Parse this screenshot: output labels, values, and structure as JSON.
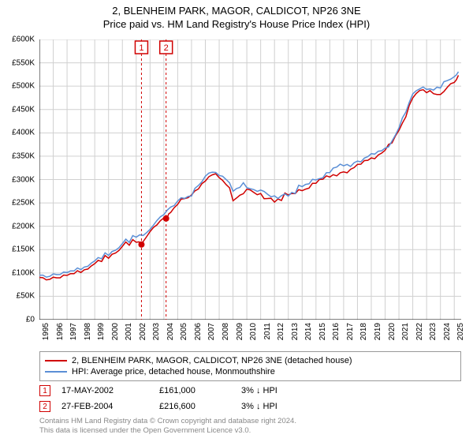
{
  "title_line1": "2, BLENHEIM PARK, MAGOR, CALDICOT, NP26 3NE",
  "title_line2": "Price paid vs. HM Land Registry's House Price Index (HPI)",
  "chart": {
    "type": "line",
    "background_color": "#ffffff",
    "grid_color": "#d0d0d0",
    "axis_color": "#000000",
    "tick_fontsize": 10,
    "xlim": [
      1995,
      2025.5
    ],
    "ylim": [
      0,
      600000
    ],
    "ytick_step": 50000,
    "y_ticks": [
      "£0",
      "£50K",
      "£100K",
      "£150K",
      "£200K",
      "£250K",
      "£300K",
      "£350K",
      "£400K",
      "£450K",
      "£500K",
      "£550K",
      "£600K"
    ],
    "x_ticks": [
      1995,
      1996,
      1997,
      1998,
      1999,
      2000,
      2001,
      2002,
      2003,
      2004,
      2005,
      2006,
      2007,
      2008,
      2009,
      2010,
      2011,
      2012,
      2013,
      2014,
      2015,
      2016,
      2017,
      2018,
      2019,
      2020,
      2021,
      2022,
      2023,
      2024,
      2025
    ],
    "series": [
      {
        "name": "price_paid",
        "label": "2, BLENHEIM PARK, MAGOR, CALDICOT, NP26 3NE (detached house)",
        "color": "#d00000",
        "line_width": 1.5,
        "x": [
          1995,
          1995.5,
          1996,
          1996.5,
          1997,
          1997.5,
          1998,
          1998.5,
          1999,
          1999.5,
          2000,
          2000.5,
          2001,
          2001.5,
          2002,
          2002.4,
          2002.5,
          2003,
          2003.5,
          2004,
          2004.2,
          2004.5,
          2005,
          2005.5,
          2006,
          2006.5,
          2007,
          2007.5,
          2008,
          2008.5,
          2009,
          2009.5,
          2010,
          2010.5,
          2011,
          2011.5,
          2012,
          2012.5,
          2013,
          2013.5,
          2014,
          2014.5,
          2015,
          2015.5,
          2016,
          2016.5,
          2017,
          2017.5,
          2018,
          2018.5,
          2019,
          2019.5,
          2020,
          2020.5,
          2021,
          2021.5,
          2022,
          2022.5,
          2023,
          2023.5,
          2024,
          2024.5,
          2025,
          2025.3
        ],
        "y": [
          87000,
          88000,
          88000,
          90000,
          94000,
          98000,
          102000,
          106000,
          112000,
          118000,
          128000,
          138000,
          148000,
          156000,
          161000,
          161000,
          170000,
          188000,
          204000,
          216600,
          216600,
          230000,
          248000,
          252000,
          258000,
          272000,
          290000,
          300000,
          295000,
          282000,
          258000,
          268000,
          278000,
          272000,
          268000,
          260000,
          255000,
          258000,
          260000,
          265000,
          270000,
          278000,
          285000,
          292000,
          300000,
          310000,
          315000,
          322000,
          330000,
          338000,
          345000,
          350000,
          358000,
          372000,
          398000,
          430000,
          468000,
          482000,
          478000,
          475000,
          480000,
          495000,
          510000,
          520000
        ]
      },
      {
        "name": "hpi",
        "label": "HPI: Average price, detached house, Monmouthshire",
        "color": "#5b8fd6",
        "line_width": 1.5,
        "x": [
          1995,
          1995.5,
          1996,
          1996.5,
          1997,
          1997.5,
          1998,
          1998.5,
          1999,
          1999.5,
          2000,
          2000.5,
          2001,
          2001.5,
          2002,
          2002.5,
          2003,
          2003.5,
          2004,
          2004.5,
          2005,
          2005.5,
          2006,
          2006.5,
          2007,
          2007.5,
          2008,
          2008.5,
          2009,
          2009.5,
          2010,
          2010.5,
          2011,
          2011.5,
          2012,
          2012.5,
          2013,
          2013.5,
          2014,
          2014.5,
          2015,
          2015.5,
          2016,
          2016.5,
          2017,
          2017.5,
          2018,
          2018.5,
          2019,
          2019.5,
          2020,
          2020.5,
          2021,
          2021.5,
          2022,
          2022.5,
          2023,
          2023.5,
          2024,
          2024.5,
          2025,
          2025.3
        ],
        "y": [
          92000,
          94000,
          95000,
          97000,
          100000,
          104000,
          108000,
          112000,
          118000,
          124000,
          134000,
          144000,
          154000,
          162000,
          172000,
          180000,
          196000,
          212000,
          226000,
          240000,
          256000,
          260000,
          266000,
          280000,
          298000,
          308000,
          302000,
          290000,
          266000,
          276000,
          286000,
          280000,
          276000,
          268000,
          263000,
          266000,
          268000,
          273000,
          278000,
          286000,
          293000,
          300000,
          308000,
          318000,
          324000,
          330000,
          338000,
          346000,
          353000,
          358000,
          366000,
          380000,
          406000,
          438000,
          476000,
          490000,
          486000,
          483000,
          488000,
          503000,
          518000,
          528000
        ]
      }
    ],
    "markers": [
      {
        "label": "1",
        "x": 2002.38,
        "y": 161000,
        "color": "#d00000",
        "vline_color": "#d00000",
        "vline_dash": "3,3"
      },
      {
        "label": "2",
        "x": 2004.16,
        "y": 216600,
        "color": "#d00000",
        "vline_color": "#d00000",
        "vline_dash": "3,3"
      }
    ],
    "marker_label_boxes": [
      {
        "label": "1",
        "x": 2002.38,
        "border_color": "#d00000",
        "text_color": "#d00000"
      },
      {
        "label": "2",
        "x": 2004.16,
        "border_color": "#d00000",
        "text_color": "#d00000"
      }
    ]
  },
  "legend": {
    "border_color": "#999999",
    "fontsize": 11,
    "items": [
      {
        "color": "#d00000",
        "label": "2, BLENHEIM PARK, MAGOR, CALDICOT, NP26 3NE (detached house)"
      },
      {
        "color": "#5b8fd6",
        "label": "HPI: Average price, detached house, Monmouthshire"
      }
    ]
  },
  "sales": [
    {
      "marker": "1",
      "date": "17-MAY-2002",
      "price": "£161,000",
      "diff": "3% ↓ HPI"
    },
    {
      "marker": "2",
      "date": "27-FEB-2004",
      "price": "£216,600",
      "diff": "3% ↓ HPI"
    }
  ],
  "footer_line1": "Contains HM Land Registry data © Crown copyright and database right 2024.",
  "footer_line2": "This data is licensed under the Open Government Licence v3.0."
}
